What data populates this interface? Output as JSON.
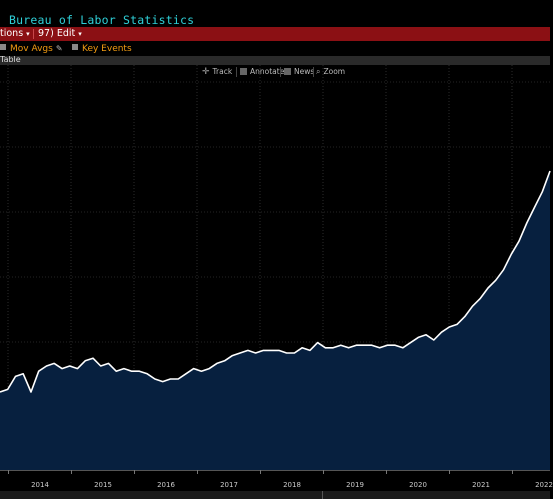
{
  "window": {
    "title": "Bureau of Labor Statistics"
  },
  "menu": {
    "items": [
      {
        "label": "tions",
        "caret": "▾"
      },
      {
        "label": "97) Edit",
        "caret": "▾"
      }
    ]
  },
  "options": {
    "mov_avgs": "Mov Avgs",
    "key_events": "Key Events"
  },
  "tab": {
    "label": "Table"
  },
  "toolbar": {
    "track": "Track",
    "annotate": "Annotate",
    "news": "News",
    "zoom": "Zoom"
  },
  "colors": {
    "title": "#2fd0d8",
    "menu_bg": "#8b1014",
    "accent": "#f39c12",
    "area_fill": "#07203f",
    "line": "#ffffff",
    "grid": "#4a4a4a"
  },
  "chart_data": {
    "type": "area",
    "x_ticks": [
      "2014",
      "2015",
      "2016",
      "2017",
      "2018",
      "2019",
      "2020",
      "2021",
      "2022"
    ],
    "grid": true,
    "y_values_relative": [
      0.05,
      0.06,
      0.11,
      0.12,
      0.05,
      0.13,
      0.15,
      0.16,
      0.14,
      0.15,
      0.14,
      0.17,
      0.18,
      0.15,
      0.16,
      0.13,
      0.14,
      0.13,
      0.13,
      0.12,
      0.1,
      0.09,
      0.1,
      0.1,
      0.12,
      0.14,
      0.13,
      0.14,
      0.16,
      0.17,
      0.19,
      0.2,
      0.21,
      0.2,
      0.21,
      0.21,
      0.21,
      0.2,
      0.2,
      0.22,
      0.21,
      0.24,
      0.22,
      0.22,
      0.23,
      0.22,
      0.23,
      0.23,
      0.23,
      0.22,
      0.23,
      0.23,
      0.22,
      0.24,
      0.26,
      0.27,
      0.25,
      0.28,
      0.3,
      0.31,
      0.34,
      0.38,
      0.41,
      0.45,
      0.48,
      0.52,
      0.58,
      0.63,
      0.7,
      0.76,
      0.82,
      0.9
    ]
  }
}
